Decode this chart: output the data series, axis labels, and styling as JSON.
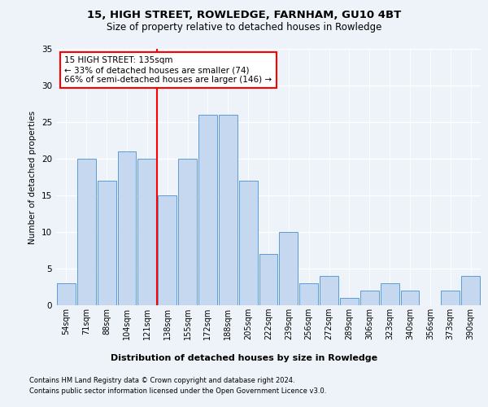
{
  "title1": "15, HIGH STREET, ROWLEDGE, FARNHAM, GU10 4BT",
  "title2": "Size of property relative to detached houses in Rowledge",
  "xlabel": "Distribution of detached houses by size in Rowledge",
  "ylabel": "Number of detached properties",
  "categories": [
    "54sqm",
    "71sqm",
    "88sqm",
    "104sqm",
    "121sqm",
    "138sqm",
    "155sqm",
    "172sqm",
    "188sqm",
    "205sqm",
    "222sqm",
    "239sqm",
    "256sqm",
    "272sqm",
    "289sqm",
    "306sqm",
    "323sqm",
    "340sqm",
    "356sqm",
    "373sqm",
    "390sqm"
  ],
  "values": [
    3,
    20,
    17,
    21,
    20,
    15,
    20,
    26,
    26,
    17,
    7,
    10,
    3,
    4,
    1,
    2,
    3,
    2,
    0,
    2,
    4
  ],
  "bar_color": "#c5d8f0",
  "bar_edge_color": "#5b9bd5",
  "vline_label": "15 HIGH STREET: 135sqm",
  "annotation_line1": "← 33% of detached houses are smaller (74)",
  "annotation_line2": "66% of semi-detached houses are larger (146) →",
  "annotation_box_color": "white",
  "annotation_box_edge": "red",
  "vline_color": "red",
  "ylim": [
    0,
    35
  ],
  "yticks": [
    0,
    5,
    10,
    15,
    20,
    25,
    30,
    35
  ],
  "footer1": "Contains HM Land Registry data © Crown copyright and database right 2024.",
  "footer2": "Contains public sector information licensed under the Open Government Licence v3.0.",
  "bg_color": "#eef3fa",
  "plot_bg_color": "#eef3fa",
  "grid_color": "white"
}
